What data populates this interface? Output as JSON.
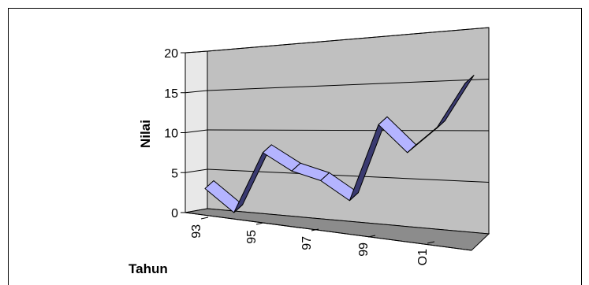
{
  "chart_data": {
    "type": "line",
    "style": "3d-ribbon",
    "xlabel": "Tahun",
    "ylabel": "Nilai",
    "ylim": [
      0,
      20
    ],
    "yticks": [
      "0",
      "5",
      "10",
      "15",
      "20"
    ],
    "x_tick_labels": [
      "93",
      "95",
      "97",
      "99",
      "O1"
    ],
    "series": [
      {
        "values": [
          3,
          0,
          7.5,
          5.2,
          4,
          1.5,
          11,
          7.5,
          10.5,
          16.2
        ]
      }
    ],
    "gridlines": true,
    "legend": "none",
    "colors": {
      "ribbon_top": "#b4b4ff",
      "ribbon_side": "#3a3a70",
      "wall": "#c0c0c0",
      "floor": "#8c8c8c"
    }
  }
}
